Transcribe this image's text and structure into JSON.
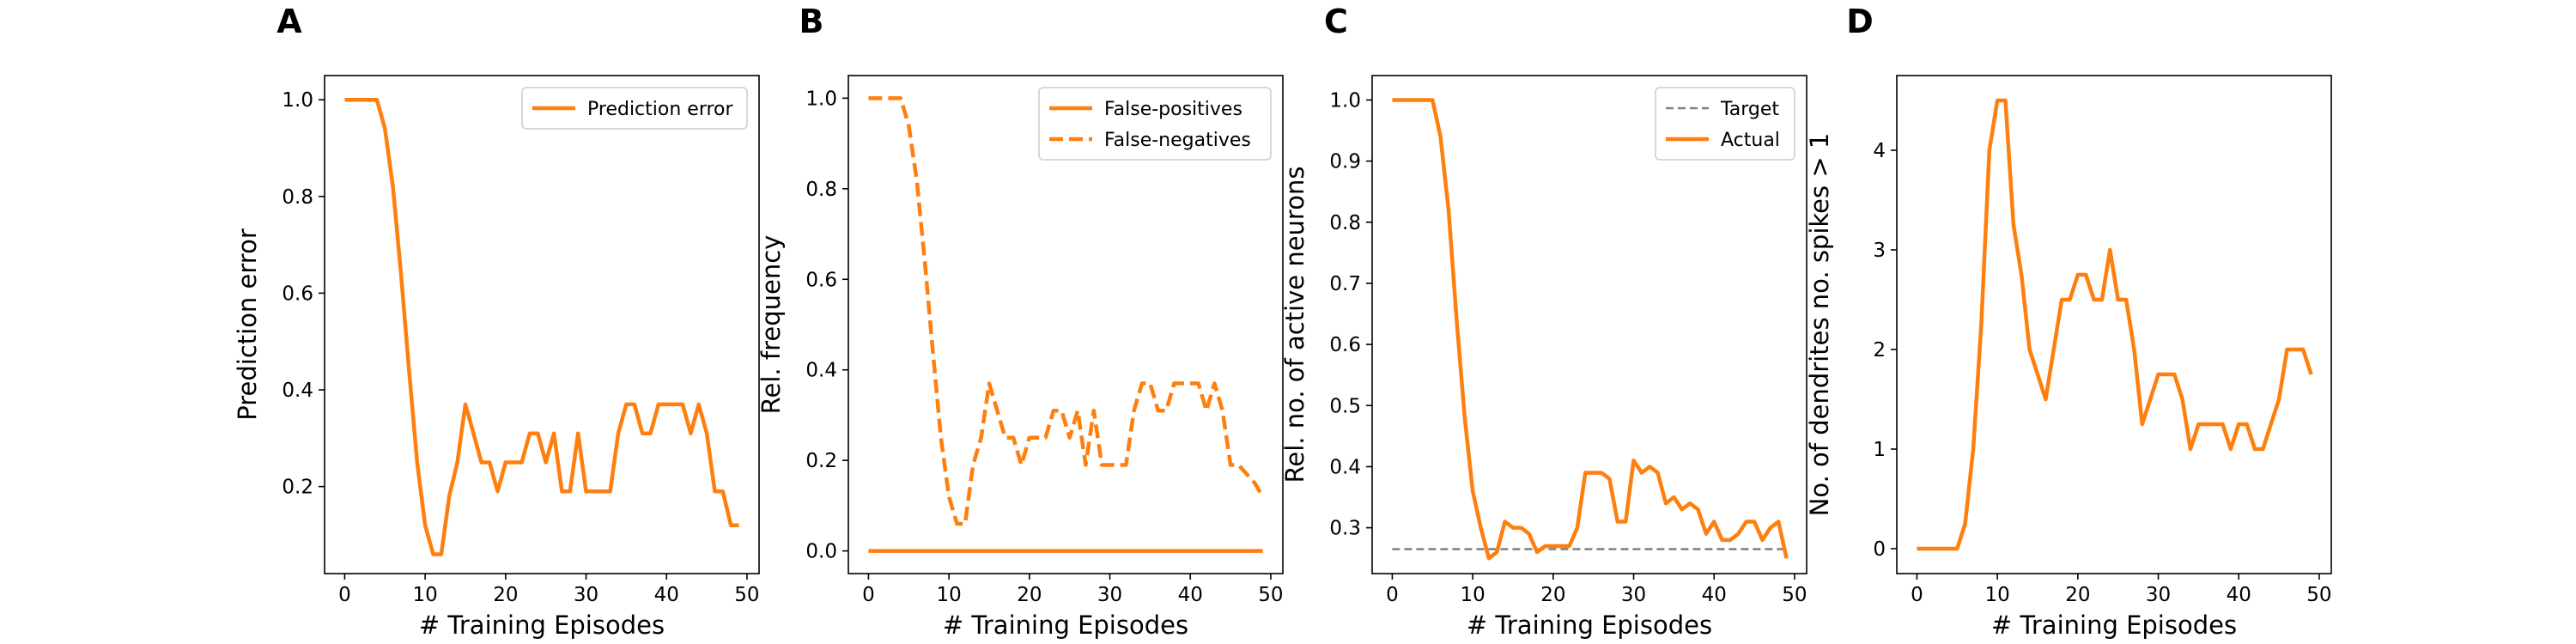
{
  "colors": {
    "accent": "#ff7f0e",
    "target": "#7f7f7f",
    "axis": "#000000",
    "legend_border": "#cccccc"
  },
  "chart_data": [
    {
      "type": "line",
      "panel": "A",
      "xlabel": "# Training Episodes",
      "ylabel": "Prediction error",
      "xlim": [
        -2.5,
        51.5
      ],
      "ylim": [
        0.02,
        1.05
      ],
      "xticks": [
        0,
        10,
        20,
        30,
        40,
        50
      ],
      "yticks": [
        0.2,
        0.4,
        0.6,
        0.8,
        1.0
      ],
      "ytick_labels": [
        "0.2",
        "0.4",
        "0.6",
        "0.8",
        "1.0"
      ],
      "legend_position": "upper-right",
      "series": [
        {
          "name": "Prediction error",
          "style": "solid",
          "x": [
            0,
            1,
            2,
            3,
            4,
            5,
            6,
            7,
            8,
            9,
            10,
            11,
            12,
            13,
            14,
            15,
            16,
            17,
            18,
            19,
            20,
            21,
            22,
            23,
            24,
            25,
            26,
            27,
            28,
            29,
            30,
            31,
            32,
            33,
            34,
            35,
            36,
            37,
            38,
            39,
            40,
            41,
            42,
            43,
            44,
            45,
            46,
            47,
            48,
            49
          ],
          "values": [
            1.0,
            1.0,
            1.0,
            1.0,
            1.0,
            0.94,
            0.82,
            0.64,
            0.44,
            0.25,
            0.12,
            0.06,
            0.06,
            0.18,
            0.25,
            0.37,
            0.31,
            0.25,
            0.25,
            0.19,
            0.25,
            0.25,
            0.25,
            0.31,
            0.31,
            0.25,
            0.31,
            0.19,
            0.19,
            0.31,
            0.19,
            0.19,
            0.19,
            0.19,
            0.31,
            0.37,
            0.37,
            0.31,
            0.31,
            0.37,
            0.37,
            0.37,
            0.37,
            0.31,
            0.37,
            0.31,
            0.19,
            0.19,
            0.12,
            0.12
          ]
        }
      ]
    },
    {
      "type": "line",
      "panel": "B",
      "xlabel": "# Training Episodes",
      "ylabel": "Rel. frequency",
      "xlim": [
        -2.5,
        51.5
      ],
      "ylim": [
        -0.05,
        1.05
      ],
      "xticks": [
        0,
        10,
        20,
        30,
        40,
        50
      ],
      "yticks": [
        0.0,
        0.2,
        0.4,
        0.6,
        0.8,
        1.0
      ],
      "ytick_labels": [
        "0.0",
        "0.2",
        "0.4",
        "0.6",
        "0.8",
        "1.0"
      ],
      "legend_position": "upper-right",
      "series": [
        {
          "name": "False-positives",
          "style": "solid",
          "x": [
            0,
            49
          ],
          "values": [
            0.0,
            0.0
          ]
        },
        {
          "name": "False-negatives",
          "style": "dashed",
          "x": [
            0,
            1,
            2,
            3,
            4,
            5,
            6,
            7,
            8,
            9,
            10,
            11,
            12,
            13,
            14,
            15,
            16,
            17,
            18,
            19,
            20,
            21,
            22,
            23,
            24,
            25,
            26,
            27,
            28,
            29,
            30,
            31,
            32,
            33,
            34,
            35,
            36,
            37,
            38,
            39,
            40,
            41,
            42,
            43,
            44,
            45,
            46,
            47,
            48,
            49
          ],
          "values": [
            1.0,
            1.0,
            1.0,
            1.0,
            1.0,
            0.94,
            0.82,
            0.64,
            0.44,
            0.25,
            0.12,
            0.06,
            0.06,
            0.19,
            0.25,
            0.37,
            0.31,
            0.25,
            0.25,
            0.19,
            0.25,
            0.25,
            0.25,
            0.31,
            0.31,
            0.25,
            0.31,
            0.19,
            0.31,
            0.19,
            0.19,
            0.19,
            0.19,
            0.31,
            0.37,
            0.37,
            0.31,
            0.31,
            0.37,
            0.37,
            0.37,
            0.37,
            0.31,
            0.37,
            0.31,
            0.19,
            0.19,
            0.17,
            0.15,
            0.12
          ]
        }
      ]
    },
    {
      "type": "line",
      "panel": "C",
      "xlabel": "# Training Episodes",
      "ylabel": "Rel. no. of active neurons",
      "xlim": [
        -2.5,
        51.5
      ],
      "ylim": [
        0.225,
        1.04
      ],
      "xticks": [
        0,
        10,
        20,
        30,
        40,
        50
      ],
      "yticks": [
        0.3,
        0.4,
        0.5,
        0.6,
        0.7,
        0.8,
        0.9,
        1.0
      ],
      "ytick_labels": [
        "0.3",
        "0.4",
        "0.5",
        "0.6",
        "0.7",
        "0.8",
        "0.9",
        "1.0"
      ],
      "legend_position": "upper-right",
      "series": [
        {
          "name": "Target",
          "style": "dashed",
          "x": [
            0,
            49
          ],
          "values": [
            0.265,
            0.265
          ]
        },
        {
          "name": "Actual",
          "style": "solid",
          "x": [
            0,
            1,
            2,
            3,
            4,
            5,
            6,
            7,
            8,
            9,
            10,
            11,
            12,
            13,
            14,
            15,
            16,
            17,
            18,
            19,
            20,
            21,
            22,
            23,
            24,
            25,
            26,
            27,
            28,
            29,
            30,
            31,
            32,
            33,
            34,
            35,
            36,
            37,
            38,
            39,
            40,
            41,
            42,
            43,
            44,
            45,
            46,
            47,
            48,
            49
          ],
          "values": [
            1.0,
            1.0,
            1.0,
            1.0,
            1.0,
            1.0,
            0.94,
            0.82,
            0.64,
            0.48,
            0.36,
            0.3,
            0.25,
            0.26,
            0.31,
            0.3,
            0.3,
            0.29,
            0.26,
            0.27,
            0.27,
            0.27,
            0.27,
            0.3,
            0.39,
            0.39,
            0.39,
            0.38,
            0.31,
            0.31,
            0.41,
            0.39,
            0.4,
            0.39,
            0.34,
            0.35,
            0.33,
            0.34,
            0.33,
            0.29,
            0.31,
            0.28,
            0.28,
            0.29,
            0.31,
            0.31,
            0.28,
            0.3,
            0.31,
            0.25
          ]
        }
      ]
    },
    {
      "type": "line",
      "panel": "D",
      "xlabel": "# Training Episodes",
      "ylabel": "No. of dendrites no. spikes > 1",
      "xlim": [
        -2.5,
        51.5
      ],
      "ylim": [
        -0.25,
        4.75
      ],
      "xticks": [
        0,
        10,
        20,
        30,
        40,
        50
      ],
      "yticks": [
        0,
        1,
        2,
        3,
        4
      ],
      "ytick_labels": [
        "0",
        "1",
        "2",
        "3",
        "4"
      ],
      "legend_position": "none",
      "series": [
        {
          "name": "",
          "style": "solid",
          "x": [
            0,
            1,
            2,
            3,
            4,
            5,
            6,
            7,
            8,
            9,
            10,
            11,
            12,
            13,
            14,
            15,
            16,
            17,
            18,
            19,
            20,
            21,
            22,
            23,
            24,
            25,
            26,
            27,
            28,
            29,
            30,
            31,
            32,
            33,
            34,
            35,
            36,
            37,
            38,
            39,
            40,
            41,
            42,
            43,
            44,
            45,
            46,
            47,
            48,
            49
          ],
          "values": [
            0,
            0,
            0,
            0,
            0,
            0,
            0.25,
            1.0,
            2.25,
            4.0,
            4.5,
            4.5,
            3.25,
            2.75,
            2.0,
            1.75,
            1.5,
            2.0,
            2.5,
            2.5,
            2.75,
            2.75,
            2.5,
            2.5,
            3.0,
            2.5,
            2.5,
            2.0,
            1.25,
            1.5,
            1.75,
            1.75,
            1.75,
            1.5,
            1.0,
            1.25,
            1.25,
            1.25,
            1.25,
            1.0,
            1.25,
            1.25,
            1.0,
            1.0,
            1.25,
            1.5,
            2.0,
            2.0,
            2.0,
            1.75
          ]
        }
      ]
    }
  ]
}
